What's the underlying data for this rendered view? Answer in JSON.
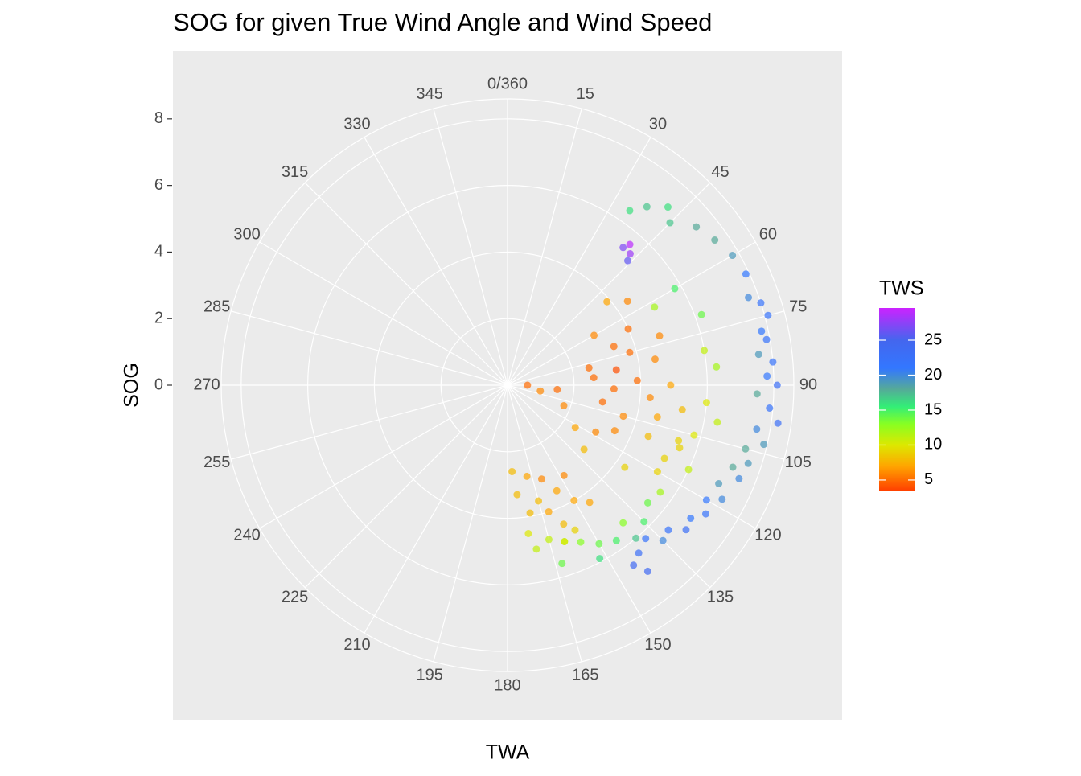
{
  "chart_data": {
    "type": "polar-scatter",
    "title": "SOG for given True Wind Angle and Wind Speed",
    "x_label": "TWA",
    "y_label": "SOG",
    "color_label": "TWS",
    "xlim": [
      0,
      360
    ],
    "xticks": [
      {
        "value": 0,
        "label": "0/360"
      },
      15,
      30,
      45,
      60,
      75,
      90,
      105,
      120,
      135,
      150,
      165,
      180,
      195,
      210,
      225,
      240,
      255,
      270,
      285,
      300,
      315,
      330,
      345
    ],
    "ylim": [
      0,
      8.6
    ],
    "yticks": [
      0,
      2,
      4,
      6,
      8
    ],
    "color_lim": [
      3.5,
      29.6
    ],
    "color_ticks": [
      5,
      10,
      15,
      20,
      25
    ],
    "color_scale": [
      [
        3.5,
        "#ff4000"
      ],
      [
        7,
        "#ffa500"
      ],
      [
        10,
        "#dde800"
      ],
      [
        13,
        "#88ff22"
      ],
      [
        15.5,
        "#33ee77"
      ],
      [
        18,
        "#55aa99"
      ],
      [
        21,
        "#3377ff"
      ],
      [
        25,
        "#4466ee"
      ],
      [
        29.6,
        "#cc22ff"
      ]
    ],
    "grid": true,
    "x": [
      35,
      38,
      42,
      45,
      50,
      55,
      60,
      65,
      70,
      72,
      75,
      78,
      80,
      83,
      85,
      88,
      90,
      92,
      95,
      98,
      100,
      103,
      105,
      108,
      110,
      112,
      115,
      118,
      120,
      123,
      126,
      129,
      132,
      135,
      138,
      142,
      145,
      143,
      60,
      70,
      80,
      85,
      95,
      100,
      105,
      110,
      115,
      120,
      125,
      130,
      135,
      140,
      145,
      150,
      155,
      160,
      163,
      152,
      140,
      40,
      41,
      43,
      44,
      60,
      65,
      70,
      72,
      75,
      78,
      80,
      82,
      85,
      88,
      90,
      92,
      95,
      98,
      100,
      102,
      105,
      108,
      110,
      113,
      118,
      122,
      130,
      125,
      115,
      95,
      100,
      110,
      90,
      55,
      50,
      62,
      150,
      155,
      158,
      160,
      162,
      165,
      168,
      170,
      172,
      175,
      177,
      160,
      165,
      170,
      155,
      148,
      145
    ],
    "values": [
      6.4,
      6.8,
      7.2,
      6.9,
      7.4,
      7.6,
      7.8,
      7.9,
      7.7,
      8.0,
      8.1,
      7.8,
      7.9,
      7.6,
      8.0,
      7.8,
      8.1,
      7.5,
      7.9,
      8.2,
      7.6,
      7.9,
      7.4,
      7.6,
      7.2,
      7.5,
      7.0,
      7.3,
      6.9,
      7.1,
      6.8,
      6.9,
      6.5,
      6.6,
      6.2,
      6.4,
      6.6,
      7.0,
      5.8,
      6.2,
      6.0,
      6.3,
      6.0,
      6.4,
      5.8,
      5.5,
      6.0,
      5.2,
      5.6,
      5.5,
      5.8,
      5.4,
      5.7,
      5.5,
      5.2,
      5.0,
      5.6,
      5.9,
      6.0,
      5.4,
      5.6,
      5.4,
      5.2,
      3.0,
      4.0,
      3.4,
      4.8,
      3.8,
      2.5,
      4.5,
      3.3,
      2.6,
      3.9,
      4.9,
      3.2,
      4.3,
      5.3,
      2.9,
      4.6,
      3.6,
      5.4,
      4.5,
      3.5,
      3.0,
      2.4,
      3.0,
      4.3,
      5.2,
      1.5,
      1.0,
      1.8,
      0.6,
      4.4,
      3.9,
      5.0,
      4.0,
      3.5,
      4.5,
      3.0,
      4.0,
      3.6,
      2.8,
      3.9,
      4.5,
      3.3,
      2.6,
      5.0,
      4.8,
      5.0,
      4.8,
      3.2,
      4.3
    ],
    "color_values": [
      16,
      17,
      16,
      17,
      18,
      18,
      19,
      21,
      20,
      22,
      22,
      21,
      22,
      19,
      22,
      21,
      23,
      18,
      22,
      23,
      20,
      19,
      18,
      19,
      18,
      20,
      19,
      20,
      21,
      22,
      21,
      23,
      22,
      20,
      22,
      23,
      24,
      24,
      15,
      14,
      11,
      12,
      10,
      11,
      10,
      9,
      11,
      9,
      12,
      14,
      15,
      13,
      15,
      14,
      13,
      12,
      14,
      16,
      17,
      27,
      29,
      28,
      26,
      6,
      5,
      5,
      6,
      5,
      5,
      6,
      4,
      5,
      5,
      7,
      5,
      6,
      8,
      5,
      7,
      6,
      9,
      8,
      6,
      6,
      7,
      8,
      9,
      9,
      5,
      6,
      6,
      5,
      6,
      7,
      12,
      7,
      7,
      8,
      6,
      7,
      8,
      7,
      8,
      10,
      8,
      8,
      10,
      11,
      11,
      9,
      6,
      7
    ]
  }
}
